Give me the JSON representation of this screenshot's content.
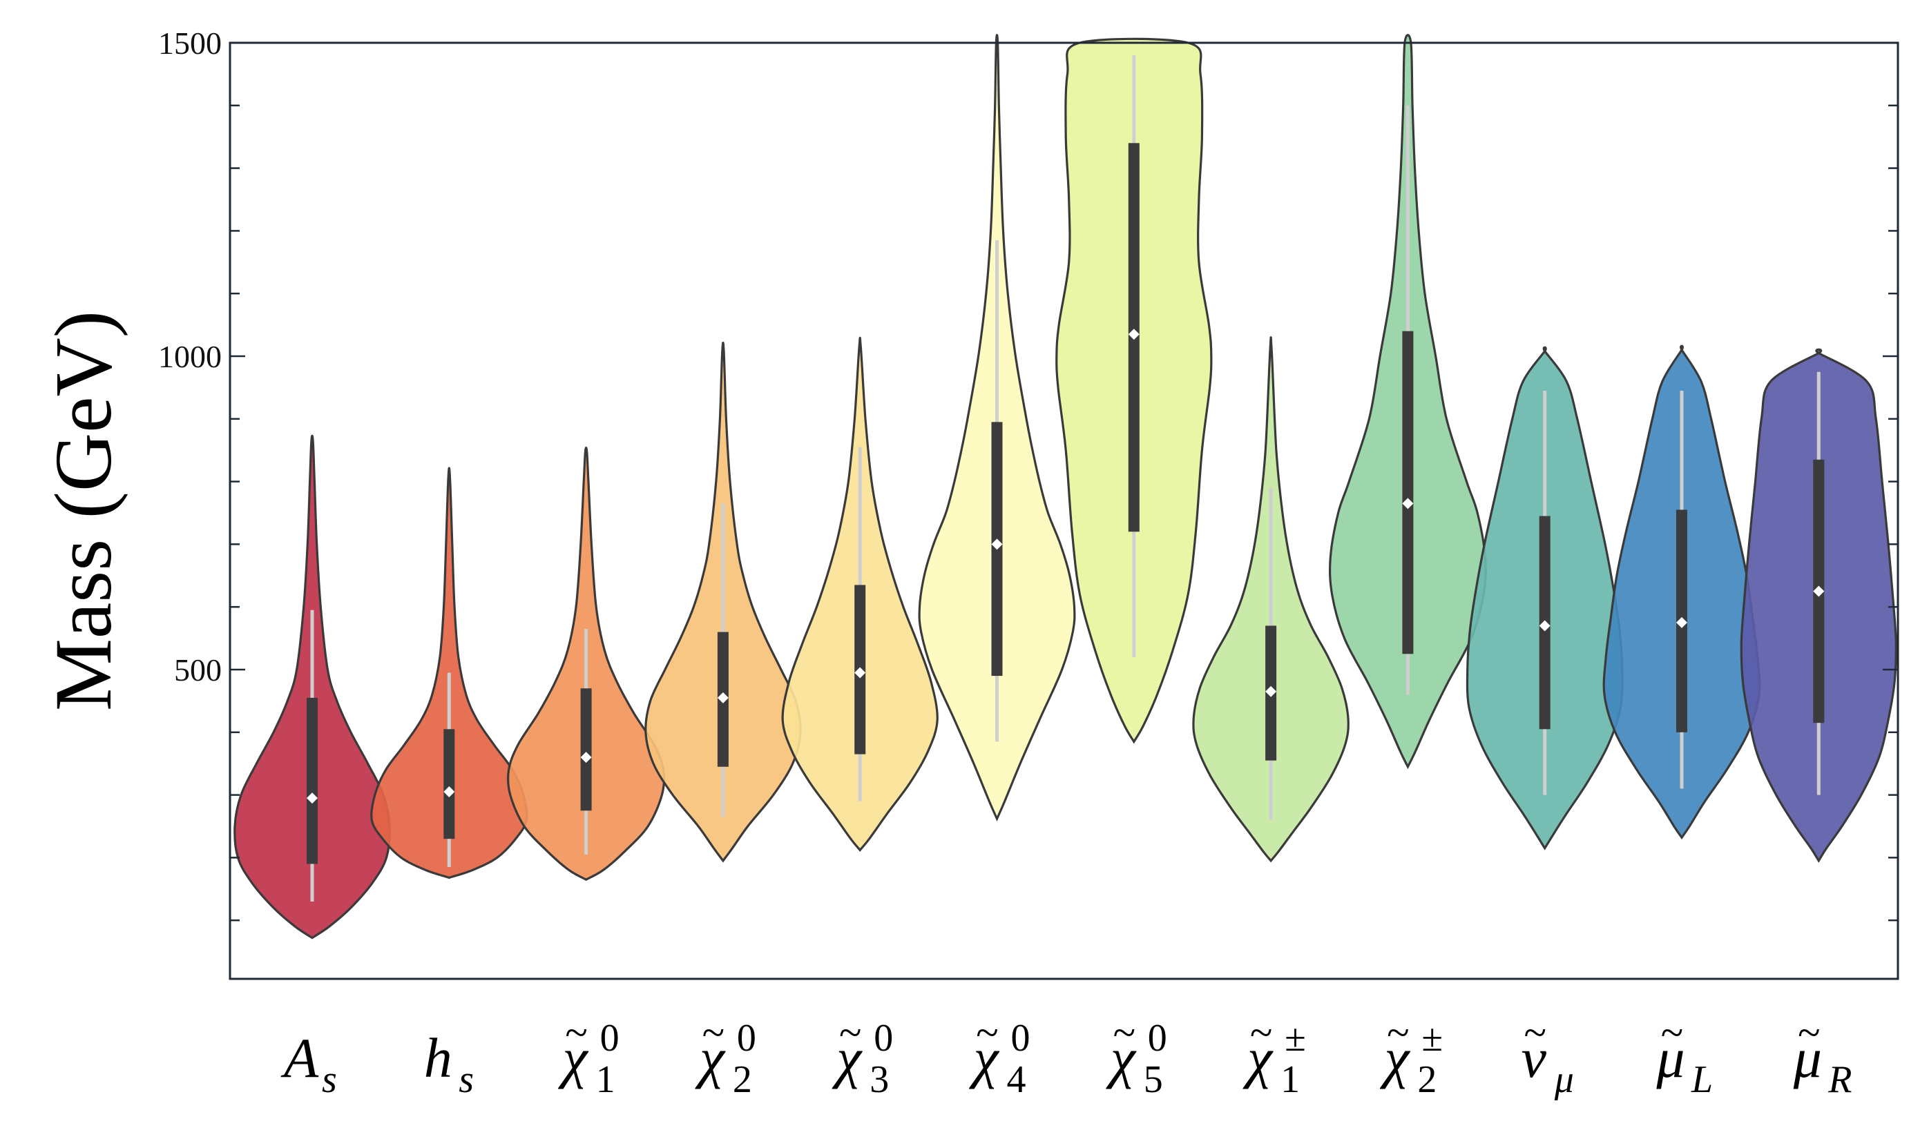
{
  "chart_data": {
    "type": "violin",
    "title": "",
    "xlabel": "",
    "ylabel": "Mass (GeV)",
    "ylim": [
      50,
      1500
    ],
    "yticks": [
      500,
      1000,
      1500
    ],
    "grid": false,
    "legend": "none",
    "categories": [
      "A_s",
      "h_s",
      "χ̃⁰₁",
      "χ̃⁰₂",
      "χ̃⁰₃",
      "χ̃⁰₄",
      "χ̃⁰₅",
      "χ̃±₁",
      "χ̃±₂",
      "ν̃_μ",
      "μ̃_L",
      "μ̃_R"
    ],
    "series": [
      {
        "label_base": "A",
        "label_sub": "s",
        "label_sup": "",
        "tilde": false,
        "color": "#c0334a",
        "min": 72,
        "max": 865,
        "q1": 190,
        "q3": 455,
        "median": 295,
        "whisker_low": 130,
        "whisker_high": 595,
        "profile": [
          [
            72,
            0
          ],
          [
            90,
            0.22
          ],
          [
            120,
            0.5
          ],
          [
            160,
            0.78
          ],
          [
            200,
            0.96
          ],
          [
            250,
            1.0
          ],
          [
            300,
            0.92
          ],
          [
            350,
            0.72
          ],
          [
            400,
            0.5
          ],
          [
            450,
            0.32
          ],
          [
            500,
            0.2
          ],
          [
            600,
            0.11
          ],
          [
            700,
            0.06
          ],
          [
            800,
            0.03
          ],
          [
            865,
            0.01
          ]
        ]
      },
      {
        "label_base": "h",
        "label_sub": "s",
        "label_sup": "",
        "tilde": false,
        "color": "#e46547",
        "min": 168,
        "max": 808,
        "q1": 230,
        "q3": 405,
        "median": 305,
        "whisker_low": 185,
        "whisker_high": 495,
        "profile": [
          [
            168,
            0
          ],
          [
            180,
            0.3
          ],
          [
            200,
            0.62
          ],
          [
            230,
            0.86
          ],
          [
            260,
            1.0
          ],
          [
            300,
            0.96
          ],
          [
            340,
            0.82
          ],
          [
            380,
            0.58
          ],
          [
            420,
            0.36
          ],
          [
            460,
            0.22
          ],
          [
            520,
            0.12
          ],
          [
            600,
            0.07
          ],
          [
            700,
            0.04
          ],
          [
            808,
            0.01
          ]
        ]
      },
      {
        "label_base": "χ",
        "label_sub": "1",
        "label_sup": "0",
        "tilde": true,
        "color": "#f2955b",
        "min": 165,
        "max": 848,
        "q1": 275,
        "q3": 470,
        "median": 360,
        "whisker_low": 205,
        "whisker_high": 565,
        "profile": [
          [
            165,
            0
          ],
          [
            180,
            0.22
          ],
          [
            210,
            0.5
          ],
          [
            250,
            0.8
          ],
          [
            300,
            0.98
          ],
          [
            340,
            1.0
          ],
          [
            380,
            0.88
          ],
          [
            430,
            0.62
          ],
          [
            480,
            0.4
          ],
          [
            530,
            0.24
          ],
          [
            600,
            0.13
          ],
          [
            700,
            0.07
          ],
          [
            800,
            0.03
          ],
          [
            848,
            0.01
          ]
        ]
      },
      {
        "label_base": "χ",
        "label_sub": "2",
        "label_sup": "0",
        "tilde": true,
        "color": "#f7c27a",
        "min": 195,
        "max": 1008,
        "q1": 345,
        "q3": 560,
        "median": 455,
        "whisker_low": 265,
        "whisker_high": 765,
        "profile": [
          [
            195,
            0
          ],
          [
            215,
            0.12
          ],
          [
            250,
            0.32
          ],
          [
            300,
            0.65
          ],
          [
            350,
            0.9
          ],
          [
            400,
            1.0
          ],
          [
            450,
            0.94
          ],
          [
            500,
            0.75
          ],
          [
            550,
            0.55
          ],
          [
            600,
            0.38
          ],
          [
            650,
            0.26
          ],
          [
            700,
            0.18
          ],
          [
            800,
            0.09
          ],
          [
            900,
            0.04
          ],
          [
            1008,
            0.01
          ]
        ]
      },
      {
        "label_base": "χ",
        "label_sub": "3",
        "label_sup": "0",
        "tilde": true,
        "color": "#fbe296",
        "min": 212,
        "max": 1015,
        "q1": 365,
        "q3": 635,
        "median": 495,
        "whisker_low": 290,
        "whisker_high": 855,
        "profile": [
          [
            212,
            0
          ],
          [
            230,
            0.12
          ],
          [
            270,
            0.35
          ],
          [
            320,
            0.65
          ],
          [
            370,
            0.88
          ],
          [
            420,
            1.0
          ],
          [
            480,
            0.92
          ],
          [
            540,
            0.75
          ],
          [
            600,
            0.56
          ],
          [
            660,
            0.4
          ],
          [
            720,
            0.27
          ],
          [
            800,
            0.15
          ],
          [
            900,
            0.07
          ],
          [
            1015,
            0.01
          ]
        ]
      },
      {
        "label_base": "χ",
        "label_sub": "4",
        "label_sup": "0",
        "tilde": true,
        "color": "#fdfbbd",
        "min": 262,
        "max": 1500,
        "q1": 490,
        "q3": 895,
        "median": 700,
        "whisker_low": 385,
        "whisker_high": 1185,
        "profile": [
          [
            262,
            0
          ],
          [
            290,
            0.1
          ],
          [
            350,
            0.3
          ],
          [
            420,
            0.55
          ],
          [
            500,
            0.84
          ],
          [
            560,
            0.98
          ],
          [
            600,
            1.0
          ],
          [
            650,
            0.94
          ],
          [
            700,
            0.82
          ],
          [
            750,
            0.66
          ],
          [
            800,
            0.55
          ],
          [
            850,
            0.46
          ],
          [
            900,
            0.38
          ],
          [
            1000,
            0.24
          ],
          [
            1100,
            0.14
          ],
          [
            1200,
            0.08
          ],
          [
            1300,
            0.05
          ],
          [
            1400,
            0.025
          ],
          [
            1500,
            0.01
          ]
        ]
      },
      {
        "label_base": "χ",
        "label_sub": "5",
        "label_sup": "0",
        "tilde": true,
        "color": "#e7f59d",
        "min": 385,
        "max": 1500,
        "q1": 720,
        "q3": 1340,
        "median": 1035,
        "whisker_low": 520,
        "whisker_high": 1480,
        "profile": [
          [
            385,
            0
          ],
          [
            410,
            0.12
          ],
          [
            460,
            0.3
          ],
          [
            530,
            0.5
          ],
          [
            620,
            0.7
          ],
          [
            720,
            0.8
          ],
          [
            850,
            0.88
          ],
          [
            950,
            0.98
          ],
          [
            1000,
            1.0
          ],
          [
            1050,
            0.97
          ],
          [
            1150,
            0.84
          ],
          [
            1250,
            0.84
          ],
          [
            1350,
            0.88
          ],
          [
            1450,
            0.86
          ],
          [
            1500,
            0.7
          ]
        ]
      },
      {
        "label_base": "χ",
        "label_sub": "1",
        "label_sup": "±",
        "tilde": true,
        "color": "#c4e8a1",
        "min": 195,
        "max": 1010,
        "q1": 355,
        "q3": 570,
        "median": 465,
        "whisker_low": 260,
        "whisker_high": 790,
        "profile": [
          [
            195,
            0
          ],
          [
            210,
            0.1
          ],
          [
            240,
            0.28
          ],
          [
            280,
            0.52
          ],
          [
            330,
            0.78
          ],
          [
            380,
            0.96
          ],
          [
            420,
            1.0
          ],
          [
            470,
            0.92
          ],
          [
            520,
            0.74
          ],
          [
            570,
            0.52
          ],
          [
            620,
            0.36
          ],
          [
            680,
            0.24
          ],
          [
            750,
            0.15
          ],
          [
            850,
            0.07
          ],
          [
            1010,
            0.01
          ]
        ]
      },
      {
        "label_base": "χ",
        "label_sub": "2",
        "label_sup": "±",
        "tilde": true,
        "color": "#96d2a4",
        "min": 345,
        "max": 1500,
        "q1": 525,
        "q3": 1040,
        "median": 765,
        "whisker_low": 460,
        "whisker_high": 1400,
        "profile": [
          [
            345,
            0
          ],
          [
            370,
            0.1
          ],
          [
            420,
            0.28
          ],
          [
            480,
            0.52
          ],
          [
            550,
            0.82
          ],
          [
            620,
            0.98
          ],
          [
            680,
            1.0
          ],
          [
            750,
            0.9
          ],
          [
            800,
            0.76
          ],
          [
            900,
            0.5
          ],
          [
            1000,
            0.36
          ],
          [
            1100,
            0.22
          ],
          [
            1200,
            0.14
          ],
          [
            1300,
            0.09
          ],
          [
            1400,
            0.06
          ],
          [
            1500,
            0.04
          ]
        ]
      },
      {
        "label_base": "ν",
        "label_sub": "μ",
        "label_sup": "",
        "tilde": true,
        "color": "#6ab7ae",
        "min": 215,
        "max": 1008,
        "q1": 405,
        "q3": 745,
        "median": 570,
        "whisker_low": 300,
        "whisker_high": 945,
        "profile": [
          [
            215,
            0
          ],
          [
            235,
            0.1
          ],
          [
            270,
            0.28
          ],
          [
            320,
            0.55
          ],
          [
            380,
            0.82
          ],
          [
            440,
            0.98
          ],
          [
            500,
            1.0
          ],
          [
            560,
            0.97
          ],
          [
            620,
            0.9
          ],
          [
            700,
            0.78
          ],
          [
            800,
            0.6
          ],
          [
            900,
            0.42
          ],
          [
            960,
            0.28
          ],
          [
            1008,
            0.0
          ]
        ]
      },
      {
        "label_base": "μ",
        "label_sub": "L",
        "label_sup": "",
        "tilde": true,
        "color": "#4388bf",
        "min": 232,
        "max": 1010,
        "q1": 400,
        "q3": 755,
        "median": 575,
        "whisker_low": 310,
        "whisker_high": 945,
        "profile": [
          [
            232,
            0
          ],
          [
            250,
            0.1
          ],
          [
            290,
            0.3
          ],
          [
            340,
            0.58
          ],
          [
            400,
            0.86
          ],
          [
            460,
            1.0
          ],
          [
            520,
            0.98
          ],
          [
            580,
            0.92
          ],
          [
            650,
            0.84
          ],
          [
            720,
            0.72
          ],
          [
            800,
            0.56
          ],
          [
            900,
            0.38
          ],
          [
            960,
            0.25
          ],
          [
            1010,
            0.0
          ]
        ]
      },
      {
        "label_base": "μ",
        "label_sub": "R",
        "label_sup": "",
        "tilde": true,
        "color": "#5b5ca8",
        "min": 195,
        "max": 1005,
        "q1": 415,
        "q3": 835,
        "median": 625,
        "whisker_low": 300,
        "whisker_high": 975,
        "profile": [
          [
            195,
            0
          ],
          [
            215,
            0.1
          ],
          [
            250,
            0.3
          ],
          [
            300,
            0.55
          ],
          [
            360,
            0.78
          ],
          [
            420,
            0.9
          ],
          [
            480,
            0.98
          ],
          [
            540,
            1.0
          ],
          [
            600,
            0.97
          ],
          [
            700,
            0.9
          ],
          [
            800,
            0.82
          ],
          [
            900,
            0.74
          ],
          [
            960,
            0.62
          ],
          [
            1005,
            0.0
          ]
        ]
      }
    ]
  }
}
